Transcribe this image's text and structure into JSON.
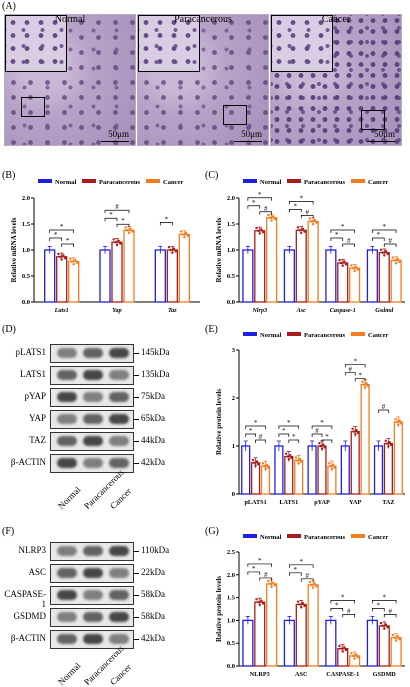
{
  "panel_labels": {
    "A": "(A)",
    "B": "(B)",
    "C": "(C)",
    "D": "(D)",
    "E": "(E)",
    "F": "(F)",
    "G": "(G)"
  },
  "histology": [
    {
      "title": "Normal",
      "scale": "50μm"
    },
    {
      "title": "Paracancerous",
      "scale": "50μm"
    },
    {
      "title": "Cancer",
      "scale": "50μm"
    }
  ],
  "legend": {
    "normal": "Normal",
    "paracancerous": "Paracancerous",
    "cancer": "Cancer"
  },
  "colors": {
    "normal": "#1f1fe0",
    "paracancerous": "#a81c1c",
    "cancer": "#f47c20"
  },
  "chart_data": [
    {
      "panel": "B",
      "type": "bar",
      "ylabel": "Relative mRNA levels",
      "ylim": [
        0,
        2.0
      ],
      "yticks": [
        "0.0",
        "0.5",
        "1.0",
        "1.5",
        "2.0"
      ],
      "categories": [
        "Lats1",
        "Yap",
        "Taz"
      ],
      "series": [
        {
          "name": "Normal",
          "values": [
            1.0,
            1.0,
            1.0
          ]
        },
        {
          "name": "Paracancerous",
          "values": [
            0.87,
            1.15,
            1.0
          ]
        },
        {
          "name": "Cancer",
          "values": [
            0.78,
            1.38,
            1.3
          ]
        }
      ],
      "significance": [
        "*",
        "*",
        "*",
        "*",
        "#",
        "*",
        "*"
      ]
    },
    {
      "panel": "C",
      "type": "bar",
      "ylabel": "Relative mRNA levels",
      "ylim": [
        0,
        2.0
      ],
      "yticks": [
        "0.0",
        "0.5",
        "1.0",
        "1.5",
        "2.0"
      ],
      "categories": [
        "Nlrp3",
        "Asc",
        "Caspase-1",
        "Gsdmd"
      ],
      "series": [
        {
          "name": "Normal",
          "values": [
            1.0,
            1.0,
            1.0,
            1.0
          ]
        },
        {
          "name": "Paracancerous",
          "values": [
            1.37,
            1.38,
            0.75,
            0.95
          ]
        },
        {
          "name": "Cancer",
          "values": [
            1.62,
            1.55,
            0.65,
            0.8
          ]
        }
      ],
      "significance": [
        "*",
        "*",
        "#",
        "*",
        "*",
        "#",
        "*",
        "*",
        "#",
        "*",
        "*",
        "#"
      ]
    },
    {
      "panel": "E",
      "type": "bar",
      "ylabel": "Relative protein levels",
      "ylim": [
        0,
        3
      ],
      "yticks": [
        "0",
        "1",
        "2",
        "3"
      ],
      "categories": [
        "pLATS1",
        "LATS1",
        "pYAP",
        "YAP",
        "TAZ"
      ],
      "series": [
        {
          "name": "Normal",
          "values": [
            1.0,
            1.0,
            1.0,
            1.0,
            1.0
          ]
        },
        {
          "name": "Paracancerous",
          "values": [
            0.65,
            0.78,
            1.0,
            1.3,
            1.05
          ]
        },
        {
          "name": "Cancer",
          "values": [
            0.58,
            0.7,
            0.58,
            2.28,
            1.5
          ]
        }
      ],
      "significance": [
        "*",
        "*",
        "#",
        "*",
        "*",
        "*",
        "#",
        "*",
        "*",
        "#",
        "*",
        "*",
        "#"
      ]
    },
    {
      "panel": "G",
      "type": "bar",
      "ylabel": "Relative protein levels",
      "ylim": [
        0,
        2.5
      ],
      "yticks": [
        "0.0",
        "0.5",
        "1.0",
        "1.5",
        "2.0",
        "2.5"
      ],
      "categories": [
        "NLRP3",
        "ASC",
        "CASPASE-1",
        "GSDMD"
      ],
      "series": [
        {
          "name": "Normal",
          "values": [
            1.0,
            1.0,
            1.0,
            1.0
          ]
        },
        {
          "name": "Paracancerous",
          "values": [
            1.4,
            1.35,
            0.38,
            0.88
          ]
        },
        {
          "name": "Cancer",
          "values": [
            1.8,
            1.78,
            0.22,
            0.62
          ]
        }
      ],
      "significance": [
        "*",
        "*",
        "#",
        "*",
        "*",
        "#",
        "*",
        "*",
        "#",
        "*",
        "*",
        "#"
      ]
    }
  ],
  "blots": [
    {
      "panel": "D",
      "rows": [
        {
          "label": "pLATS1",
          "kda": "145kDa"
        },
        {
          "label": "LATS1",
          "kda": "135kDa"
        },
        {
          "label": "pYAP",
          "kda": "75kDa"
        },
        {
          "label": "YAP",
          "kda": "65kDa"
        },
        {
          "label": "TAZ",
          "kda": "44kDa"
        },
        {
          "label": "β-ACTIN",
          "kda": "42kDa"
        }
      ],
      "lanes": [
        "Normal",
        "Paracancerous",
        "Cancer"
      ]
    },
    {
      "panel": "F",
      "rows": [
        {
          "label": "NLRP3",
          "kda": "110kDa"
        },
        {
          "label": "ASC",
          "kda": "22kDa"
        },
        {
          "label": "CASPASE-1",
          "kda": "58kDa"
        },
        {
          "label": "GSDMD",
          "kda": "58kDa"
        },
        {
          "label": "β-ACTIN",
          "kda": "42kDa"
        }
      ],
      "lanes": [
        "Normal",
        "Paracancerous",
        "Cancer"
      ]
    }
  ]
}
